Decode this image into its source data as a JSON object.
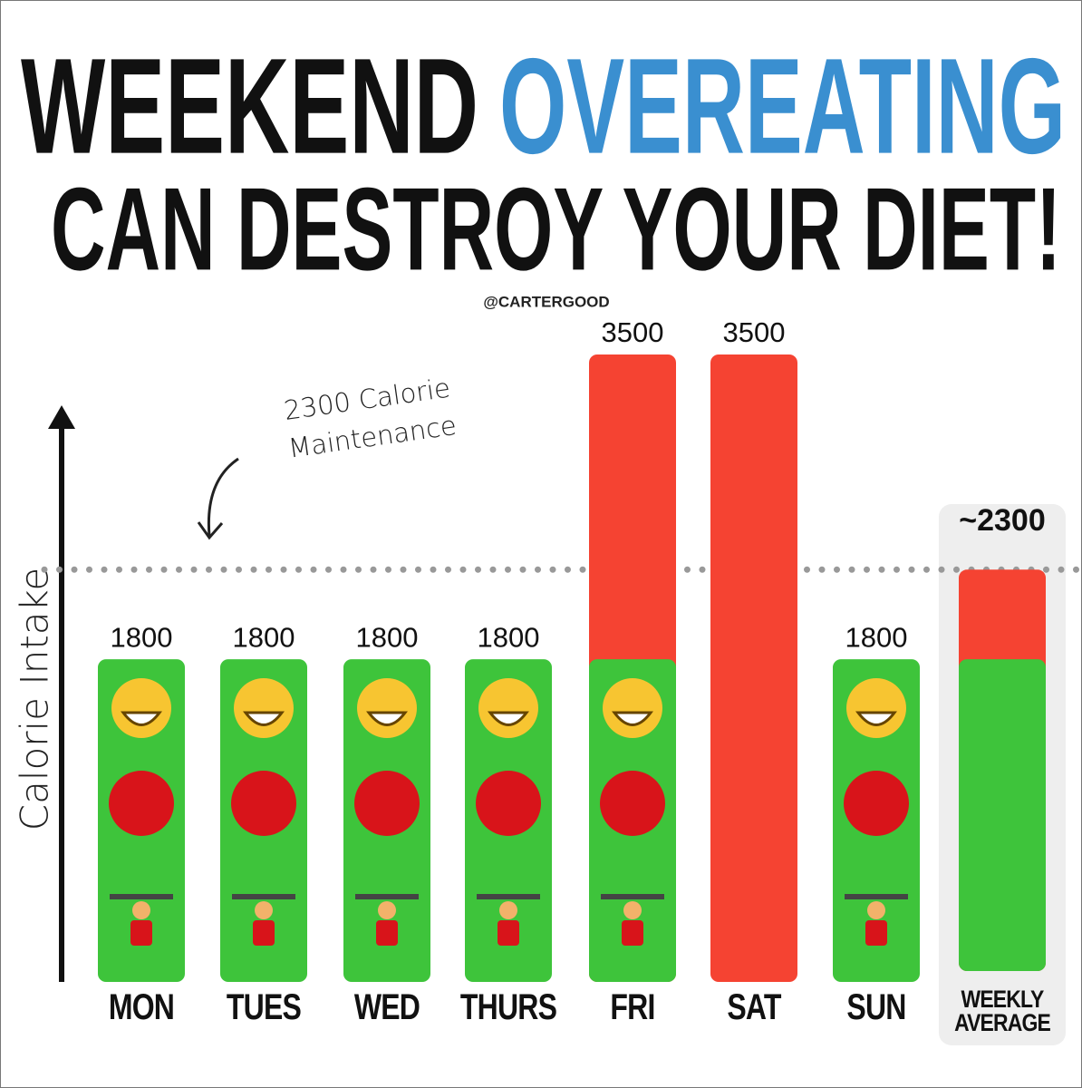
{
  "chart_data": {
    "type": "bar",
    "title": {
      "part1": "WEEKEND",
      "part2": "OVEREATING",
      "part3": "CAN DESTROY YOUR DIET!"
    },
    "credit": "@CARTERGOOD",
    "y_label": "Calorie Intake",
    "categories": [
      "MON",
      "TUES",
      "WED",
      "THURS",
      "FRI",
      "SAT",
      "SUN",
      "WEEKLY AVERAGE"
    ],
    "values": [
      1800,
      1800,
      1800,
      1800,
      3500,
      3500,
      1800,
      2300
    ],
    "value_labels": [
      "1800",
      "1800",
      "1800",
      "1800",
      "3500",
      "3500",
      "1800",
      "~2300"
    ],
    "colors": [
      "#3ec43b",
      "#3ec43b",
      "#3ec43b",
      "#3ec43b",
      "#f54332",
      "#f54332",
      "#3ec43b",
      "#f54332"
    ],
    "base_values": [
      null,
      null,
      null,
      null,
      1800,
      null,
      null,
      1800
    ],
    "base_color": "#3ec43b",
    "reference_line": {
      "value": 2300,
      "label": "2300 Calorie Maintenance"
    },
    "ylim": [
      0,
      3500
    ]
  }
}
